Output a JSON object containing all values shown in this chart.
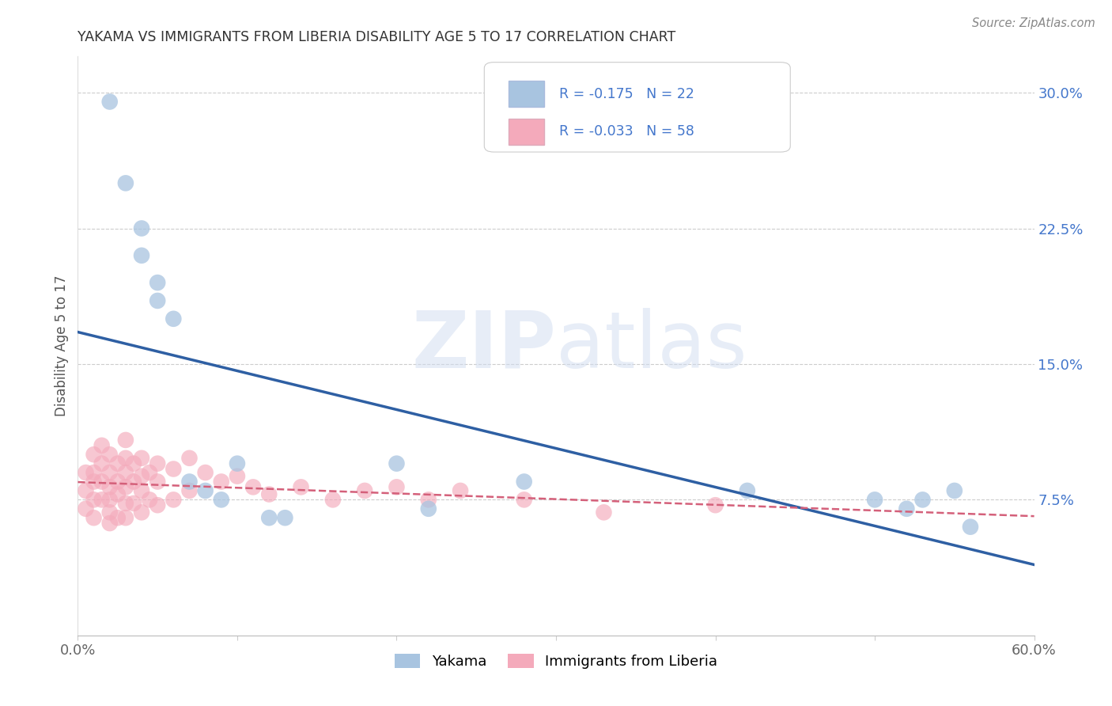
{
  "title": "YAKAMA VS IMMIGRANTS FROM LIBERIA DISABILITY AGE 5 TO 17 CORRELATION CHART",
  "source": "Source: ZipAtlas.com",
  "ylabel_label": "Disability Age 5 to 17",
  "xlim": [
    0.0,
    0.6
  ],
  "ylim": [
    0.0,
    0.32
  ],
  "yticks_right": [
    0.075,
    0.15,
    0.225,
    0.3
  ],
  "ytick_right_labels": [
    "7.5%",
    "15.0%",
    "22.5%",
    "30.0%"
  ],
  "yakama_R": -0.175,
  "yakama_N": 22,
  "liberia_R": -0.033,
  "liberia_N": 58,
  "yakama_color": "#A8C4E0",
  "liberia_color": "#F4AABB",
  "yakama_line_color": "#2E5FA3",
  "liberia_line_color": "#D4607A",
  "legend_label_yakama": "Yakama",
  "legend_label_liberia": "Immigrants from Liberia",
  "yakama_x": [
    0.02,
    0.03,
    0.04,
    0.04,
    0.05,
    0.05,
    0.06,
    0.07,
    0.08,
    0.09,
    0.1,
    0.12,
    0.13,
    0.2,
    0.22,
    0.28,
    0.42,
    0.5,
    0.52,
    0.53,
    0.55,
    0.56
  ],
  "yakama_y": [
    0.295,
    0.25,
    0.225,
    0.21,
    0.195,
    0.185,
    0.175,
    0.085,
    0.08,
    0.075,
    0.095,
    0.065,
    0.065,
    0.095,
    0.07,
    0.085,
    0.08,
    0.075,
    0.07,
    0.075,
    0.08,
    0.06
  ],
  "liberia_x": [
    0.005,
    0.005,
    0.005,
    0.01,
    0.01,
    0.01,
    0.01,
    0.01,
    0.015,
    0.015,
    0.015,
    0.015,
    0.02,
    0.02,
    0.02,
    0.02,
    0.02,
    0.02,
    0.025,
    0.025,
    0.025,
    0.025,
    0.03,
    0.03,
    0.03,
    0.03,
    0.03,
    0.03,
    0.035,
    0.035,
    0.035,
    0.04,
    0.04,
    0.04,
    0.04,
    0.045,
    0.045,
    0.05,
    0.05,
    0.05,
    0.06,
    0.06,
    0.07,
    0.07,
    0.08,
    0.09,
    0.1,
    0.11,
    0.12,
    0.14,
    0.16,
    0.18,
    0.2,
    0.22,
    0.24,
    0.28,
    0.33,
    0.4
  ],
  "liberia_y": [
    0.09,
    0.08,
    0.07,
    0.1,
    0.09,
    0.085,
    0.075,
    0.065,
    0.105,
    0.095,
    0.085,
    0.075,
    0.1,
    0.09,
    0.082,
    0.075,
    0.068,
    0.062,
    0.095,
    0.085,
    0.078,
    0.065,
    0.108,
    0.098,
    0.09,
    0.082,
    0.073,
    0.065,
    0.095,
    0.085,
    0.073,
    0.098,
    0.088,
    0.08,
    0.068,
    0.09,
    0.075,
    0.095,
    0.085,
    0.072,
    0.092,
    0.075,
    0.098,
    0.08,
    0.09,
    0.085,
    0.088,
    0.082,
    0.078,
    0.082,
    0.075,
    0.08,
    0.082,
    0.075,
    0.08,
    0.075,
    0.068,
    0.072
  ],
  "grid_color": "#CCCCCC",
  "background_color": "#FFFFFF",
  "title_color": "#333333",
  "axis_color": "#666666",
  "tick_color_right": "#4477CC"
}
